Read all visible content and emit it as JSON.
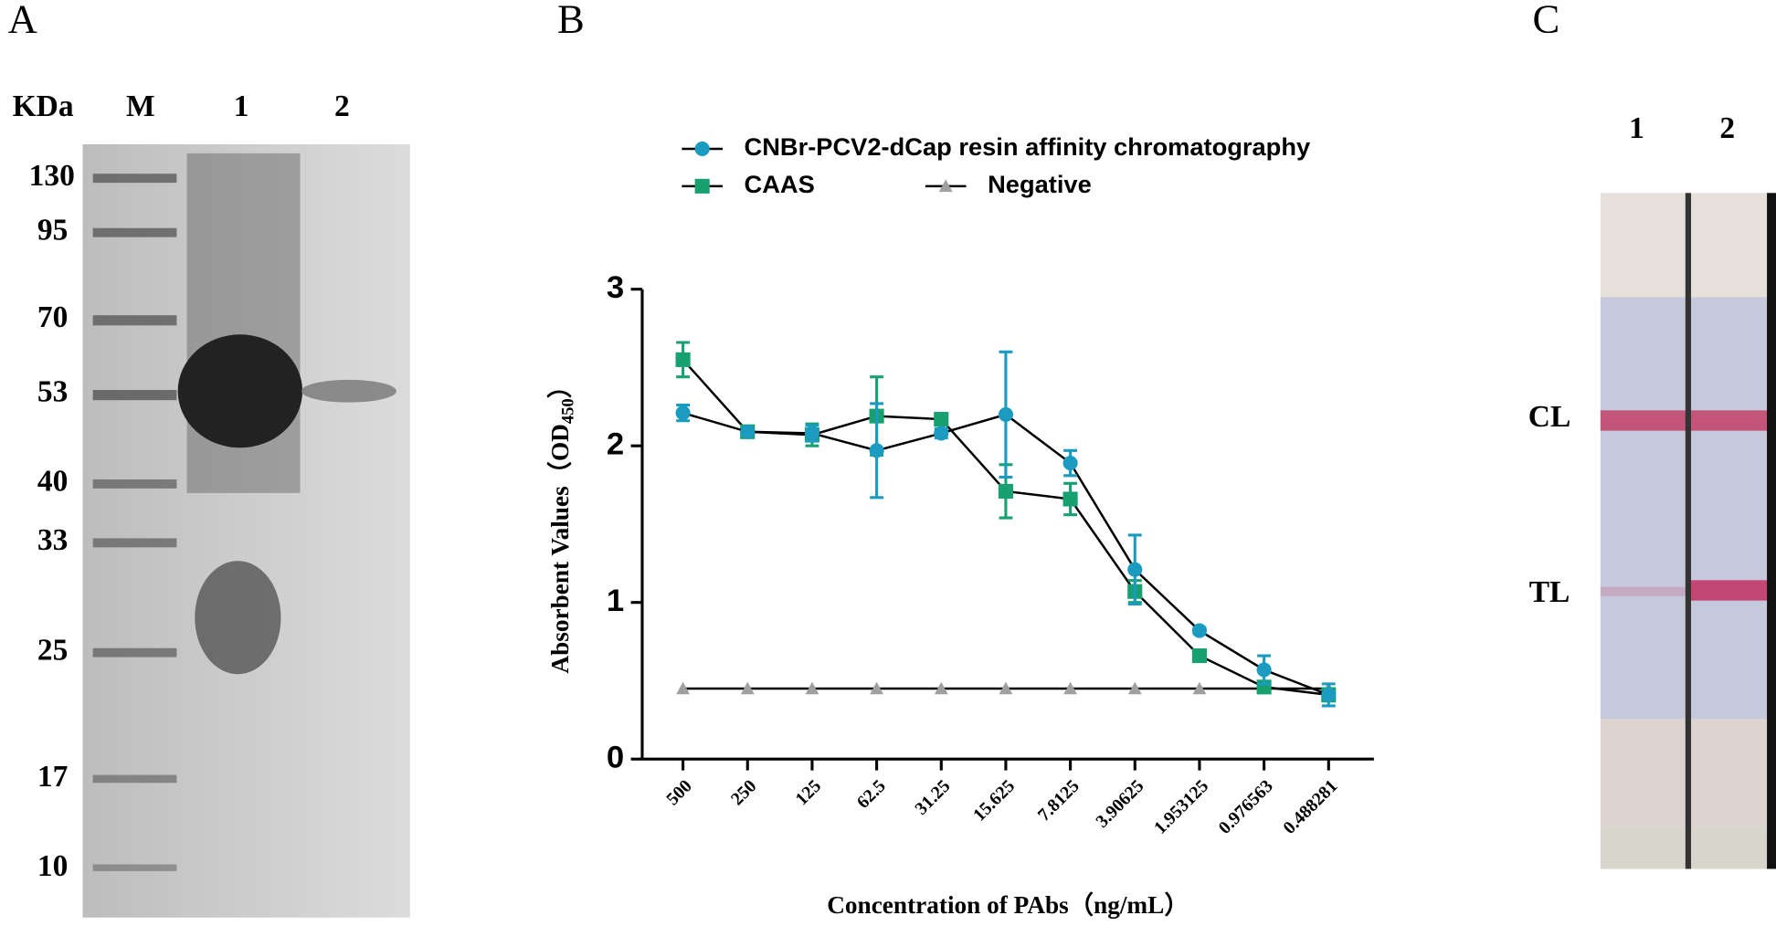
{
  "gel": {
    "panel_label": "A",
    "unit_label": "KDa",
    "lanes": [
      "M",
      "1",
      "2"
    ],
    "markers": [
      130,
      95,
      70,
      53,
      40,
      33,
      25,
      17,
      10
    ]
  },
  "chart_data": {
    "type": "line",
    "panel_label": "B",
    "xlabel": "Concentration of PAbs（ng/mL）",
    "ylabel": [
      "Absorbent Values（OD",
      "450",
      "）"
    ],
    "categories": [
      "500",
      "250",
      "125",
      "62.5",
      "31.25",
      "15.625",
      "7.8125",
      "3.90625",
      "1.953125",
      "0.976563",
      "0.488281"
    ],
    "ylim": [
      0,
      3
    ],
    "yticks": [
      0,
      1,
      2,
      3
    ],
    "series": [
      {
        "name": "CNBr-PCV2-dCap resin affinity chromatography",
        "color": "#1a9bbf",
        "marker": "circle",
        "values": [
          2.21,
          2.09,
          2.08,
          1.97,
          2.08,
          2.2,
          1.89,
          1.21,
          0.82,
          0.57,
          0.41
        ],
        "errors": [
          0.05,
          0,
          0.05,
          0.3,
          0.03,
          0.4,
          0.08,
          0.22,
          0.02,
          0.09,
          0.07
        ]
      },
      {
        "name": "CAAS",
        "color": "#19a070",
        "marker": "square",
        "values": [
          2.55,
          2.09,
          2.07,
          2.19,
          2.17,
          1.71,
          1.66,
          1.07,
          0.66,
          0.46,
          0.41
        ],
        "errors": [
          0.11,
          0,
          0.07,
          0.25,
          0.02,
          0.17,
          0.1,
          0.07,
          0.02,
          0.03,
          0.04
        ]
      },
      {
        "name": "Negative",
        "color": "#a0a0a0",
        "marker": "triangle",
        "values": [
          0.45,
          0.45,
          0.45,
          0.45,
          0.45,
          0.45,
          0.45,
          0.45,
          0.45,
          0.45,
          0.45
        ]
      }
    ]
  },
  "strip": {
    "panel_label": "C",
    "lanes": [
      "1",
      "2"
    ],
    "lines": [
      "CL",
      "TL"
    ]
  }
}
